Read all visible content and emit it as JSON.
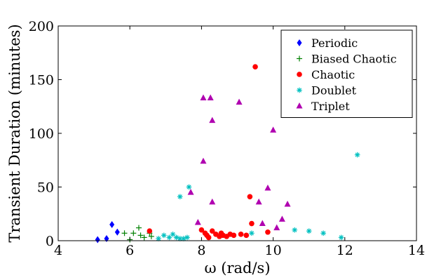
{
  "chart_data": {
    "type": "scatter",
    "xlabel": "ω (rad/s)",
    "ylabel": "Transient Duration (minutes)",
    "xlim": [
      4,
      14
    ],
    "ylim": [
      0,
      200
    ],
    "x_ticks": [
      4,
      6,
      8,
      10,
      12,
      14
    ],
    "y_ticks": [
      0,
      50,
      100,
      150,
      200
    ],
    "grid": false,
    "legend_position": "top-right",
    "series": [
      {
        "name": "Periodic",
        "color": "#0000ff",
        "marker": "diamond",
        "points": [
          [
            5.1,
            1
          ],
          [
            5.35,
            2
          ],
          [
            5.5,
            15
          ],
          [
            5.65,
            8
          ]
        ]
      },
      {
        "name": "Biased Chaotic",
        "color": "#008000",
        "marker": "plus",
        "points": [
          [
            5.85,
            7
          ],
          [
            6.0,
            1
          ],
          [
            6.1,
            7
          ],
          [
            6.25,
            12
          ],
          [
            6.3,
            5
          ],
          [
            6.4,
            3
          ],
          [
            6.55,
            7
          ],
          [
            6.6,
            4
          ]
        ]
      },
      {
        "name": "Chaotic",
        "color": "#ff0000",
        "marker": "circle",
        "points": [
          [
            6.55,
            9
          ],
          [
            8.0,
            10
          ],
          [
            8.1,
            7
          ],
          [
            8.15,
            5
          ],
          [
            8.2,
            3
          ],
          [
            8.3,
            9
          ],
          [
            8.4,
            6
          ],
          [
            8.5,
            4
          ],
          [
            8.55,
            7
          ],
          [
            8.6,
            5
          ],
          [
            8.7,
            4
          ],
          [
            8.8,
            6
          ],
          [
            8.9,
            5
          ],
          [
            9.1,
            6
          ],
          [
            9.25,
            5
          ],
          [
            9.35,
            41
          ],
          [
            9.4,
            16
          ],
          [
            9.5,
            162
          ],
          [
            9.85,
            8
          ]
        ]
      },
      {
        "name": "Doublet",
        "color": "#00c0c0",
        "marker": "asterisk",
        "points": [
          [
            6.8,
            2
          ],
          [
            6.95,
            5
          ],
          [
            7.1,
            3
          ],
          [
            7.2,
            6
          ],
          [
            7.3,
            3
          ],
          [
            7.4,
            2
          ],
          [
            7.5,
            2
          ],
          [
            7.6,
            3
          ],
          [
            7.4,
            41
          ],
          [
            7.65,
            50
          ],
          [
            9.4,
            7
          ],
          [
            10.6,
            10
          ],
          [
            11.0,
            9
          ],
          [
            11.4,
            7
          ],
          [
            11.9,
            3
          ],
          [
            12.35,
            80
          ]
        ]
      },
      {
        "name": "Triplet",
        "color": "#b000b0",
        "marker": "triangle",
        "points": [
          [
            7.7,
            45
          ],
          [
            7.9,
            17
          ],
          [
            8.05,
            133
          ],
          [
            8.05,
            74
          ],
          [
            8.25,
            133
          ],
          [
            8.3,
            112
          ],
          [
            8.3,
            36
          ],
          [
            9.05,
            129
          ],
          [
            9.6,
            36
          ],
          [
            9.7,
            16
          ],
          [
            9.85,
            49
          ],
          [
            10.0,
            103
          ],
          [
            10.1,
            12
          ],
          [
            10.25,
            20
          ],
          [
            10.4,
            34
          ]
        ]
      }
    ]
  }
}
